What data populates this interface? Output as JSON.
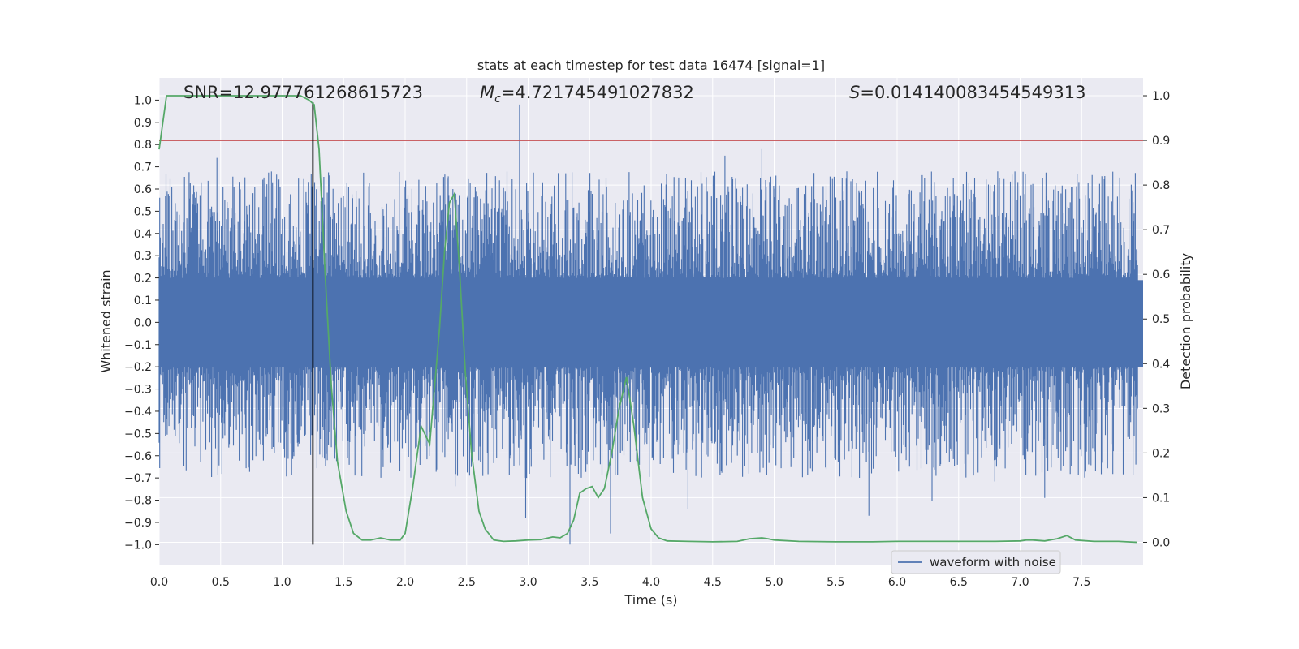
{
  "chart_data": {
    "type": "line",
    "title": "stats at each timestep for test data 16474 [signal=1]",
    "xlabel": "Time (s)",
    "ylabel_left": "Whitened strain",
    "ylabel_right": "Detection probability",
    "xlim": [
      0.0,
      8.0
    ],
    "ylim_left": [
      -1.09,
      1.1
    ],
    "ylim_right": [
      -0.05,
      1.04
    ],
    "x_ticks": [
      "0.0",
      "0.5",
      "1.0",
      "1.5",
      "2.0",
      "2.5",
      "3.0",
      "3.5",
      "4.0",
      "4.5",
      "5.0",
      "5.5",
      "6.0",
      "6.5",
      "7.0",
      "7.5"
    ],
    "y_ticks_left": [
      "1.0",
      "0.9",
      "0.8",
      "0.7",
      "0.6",
      "0.5",
      "0.4",
      "0.3",
      "0.2",
      "0.1",
      "0.0",
      "−0.1",
      "−0.2",
      "−0.3",
      "−0.4",
      "−0.5",
      "−0.6",
      "−0.7",
      "−0.8",
      "−0.9",
      "−1.0"
    ],
    "y_ticks_right": [
      "1.0",
      "0.9",
      "0.8",
      "0.7",
      "0.6",
      "0.5",
      "0.4",
      "0.3",
      "0.2",
      "0.1",
      "0.0"
    ],
    "grid": true,
    "legend_position": "lower-right",
    "annotations": {
      "snr": "SNR=12.977761268615723",
      "mc_symbol": "M",
      "mc_sub": "c",
      "mc_value": "=4.721745491027832",
      "s_symbol": "S",
      "s_value": "=0.014140083454549313"
    },
    "threshold_probability": 0.9,
    "marker_time": 1.25,
    "series": [
      {
        "name": "waveform with noise",
        "axis": "left",
        "color": "#4c72b0",
        "envelope_peaks_up": [
          [
            2.93,
            0.98
          ],
          [
            4.9,
            0.78
          ],
          [
            4.6,
            0.75
          ],
          [
            0.47,
            0.74
          ]
        ],
        "envelope_peaks_down": [
          [
            3.34,
            -1.0
          ],
          [
            3.67,
            -0.95
          ],
          [
            2.98,
            -0.88
          ],
          [
            5.77,
            -0.87
          ],
          [
            4.3,
            -0.84
          ],
          [
            7.2,
            -0.79
          ]
        ]
      },
      {
        "axis": "right",
        "color": "#55a868",
        "x": [
          0.0,
          0.06,
          0.12,
          0.2,
          0.3,
          0.5,
          0.8,
          1.0,
          1.15,
          1.22,
          1.26,
          1.3,
          1.35,
          1.4,
          1.45,
          1.52,
          1.58,
          1.65,
          1.72,
          1.8,
          1.88,
          1.96,
          2.0,
          2.06,
          2.13,
          2.2,
          2.28,
          2.32,
          2.36,
          2.4,
          2.44,
          2.49,
          2.54,
          2.6,
          2.65,
          2.72,
          2.8,
          2.9,
          3.0,
          3.1,
          3.2,
          3.26,
          3.32,
          3.37,
          3.42,
          3.47,
          3.52,
          3.57,
          3.62,
          3.68,
          3.74,
          3.8,
          3.86,
          3.93,
          4.0,
          4.06,
          4.13,
          4.3,
          4.5,
          4.7,
          4.8,
          4.9,
          4.95,
          5.0,
          5.2,
          5.5,
          5.8,
          6.0,
          6.2,
          6.5,
          6.8,
          7.0,
          7.05,
          7.1,
          7.2,
          7.3,
          7.38,
          7.45,
          7.6,
          7.8,
          7.95
        ],
        "y": [
          0.88,
          1.0,
          1.0,
          1.0,
          1.0,
          1.0,
          1.0,
          1.0,
          1.0,
          0.99,
          0.98,
          0.88,
          0.6,
          0.35,
          0.18,
          0.07,
          0.02,
          0.005,
          0.005,
          0.01,
          0.005,
          0.005,
          0.02,
          0.12,
          0.26,
          0.22,
          0.48,
          0.65,
          0.76,
          0.78,
          0.62,
          0.38,
          0.2,
          0.07,
          0.03,
          0.005,
          0.002,
          0.003,
          0.005,
          0.006,
          0.012,
          0.01,
          0.02,
          0.05,
          0.11,
          0.12,
          0.125,
          0.1,
          0.12,
          0.2,
          0.3,
          0.37,
          0.26,
          0.1,
          0.03,
          0.01,
          0.003,
          0.002,
          0.001,
          0.002,
          0.008,
          0.01,
          0.008,
          0.005,
          0.002,
          0.001,
          0.001,
          0.002,
          0.002,
          0.002,
          0.002,
          0.003,
          0.005,
          0.005,
          0.003,
          0.008,
          0.015,
          0.005,
          0.002,
          0.002,
          0.0
        ]
      }
    ]
  }
}
